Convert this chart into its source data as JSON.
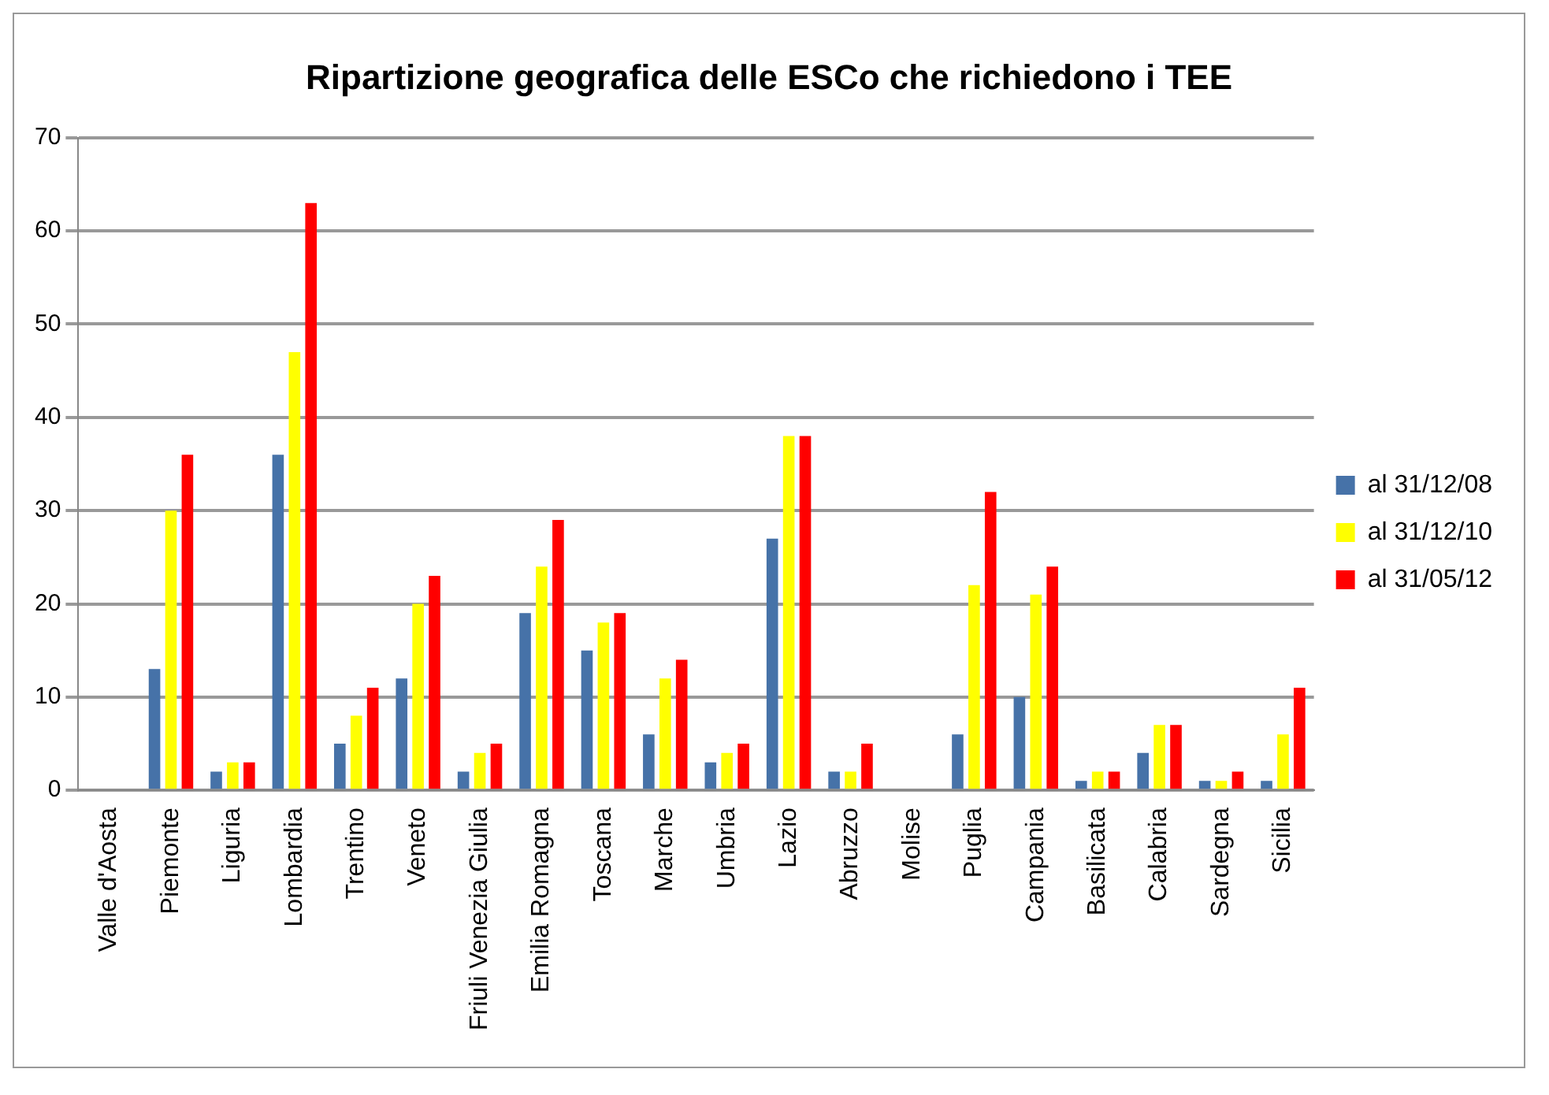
{
  "chart_data": {
    "type": "bar",
    "title": "Ripartizione geografica delle ESCo che richiedono i TEE",
    "categories": [
      "Valle d'Aosta",
      "Piemonte",
      "Liguria",
      "Lombardia",
      "Trentino",
      "Veneto",
      "Friuli Venezia Giulia",
      "Emilia Romagna",
      "Toscana",
      "Marche",
      "Umbria",
      "Lazio",
      "Abruzzo",
      "Molise",
      "Puglia",
      "Campania",
      "Basilicata",
      "Calabria",
      "Sardegna",
      "Sicilia"
    ],
    "series": [
      {
        "name": "al 31/12/08",
        "color": "#4672a8",
        "values": [
          0,
          13,
          2,
          36,
          5,
          12,
          2,
          19,
          15,
          6,
          3,
          27,
          2,
          0,
          6,
          10,
          1,
          4,
          1,
          1
        ]
      },
      {
        "name": "al 31/12/10",
        "color": "#ffff00",
        "values": [
          0,
          30,
          3,
          47,
          8,
          20,
          4,
          24,
          18,
          12,
          4,
          38,
          2,
          0,
          22,
          21,
          2,
          7,
          1,
          6
        ]
      },
      {
        "name": "al 31/05/12",
        "color": "#ff0000",
        "values": [
          0,
          36,
          3,
          63,
          11,
          23,
          5,
          29,
          19,
          14,
          5,
          38,
          5,
          0,
          32,
          24,
          2,
          7,
          2,
          11
        ]
      }
    ],
    "ylim": [
      0,
      70
    ],
    "yticks": [
      0,
      10,
      20,
      30,
      40,
      50,
      60,
      70
    ],
    "grid": "y",
    "legend": "right"
  }
}
